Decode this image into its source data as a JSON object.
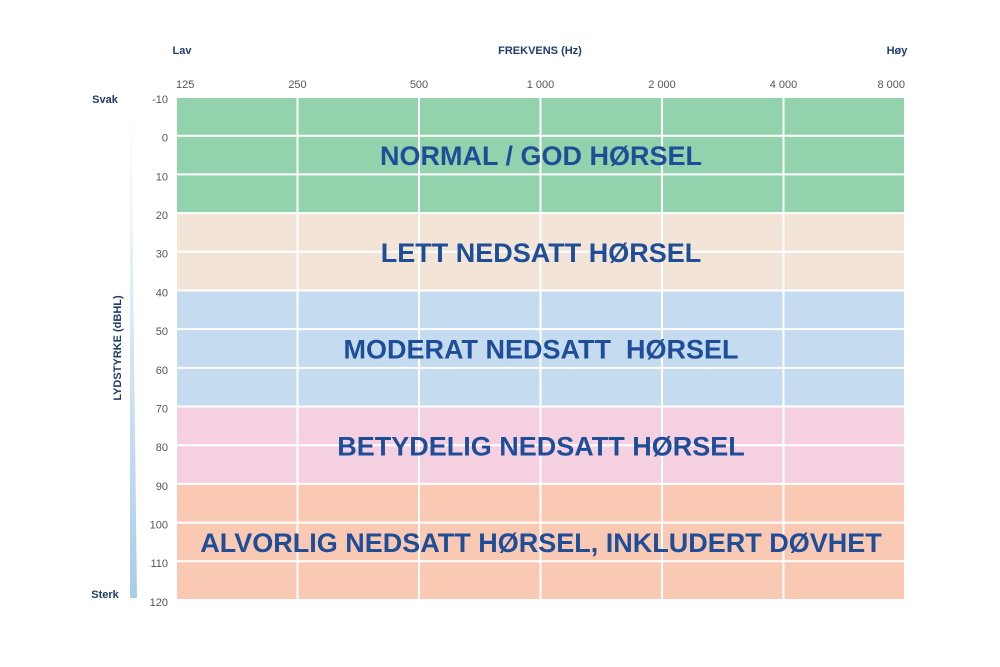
{
  "chart_data": {
    "type": "audiogram",
    "title": "FREKVENS (Hz)",
    "x_low_label": "Lav",
    "x_high_label": "Høy",
    "y_label": "LYDSTYRKE (dBHL)",
    "y_top_label": "Svak",
    "y_bottom_label": "Sterk",
    "xscale": "log",
    "xlim": [
      125,
      8000
    ],
    "xticks": [
      125,
      250,
      500,
      {
        "value": 1000,
        "label": "1 000"
      },
      {
        "value": 2000,
        "label": "2 000"
      },
      {
        "value": 4000,
        "label": "4 000"
      },
      {
        "value": 8000,
        "label": "8 000"
      }
    ],
    "ylim": [
      -10,
      120
    ],
    "yinverted": true,
    "yticks": [
      -10,
      0,
      10,
      20,
      30,
      40,
      50,
      60,
      70,
      80,
      90,
      100,
      110,
      120
    ],
    "grid": true,
    "bands": [
      {
        "label": "NORMAL / GOD HØRSEL",
        "from": -10,
        "to": 20,
        "color": "#92d3ad"
      },
      {
        "label": "LETT NEDSATT HØRSEL",
        "from": 20,
        "to": 40,
        "color": "#f3e4d8"
      },
      {
        "label": "MODERAT NEDSATT  HØRSEL",
        "from": 40,
        "to": 70,
        "color": "#c5dbef"
      },
      {
        "label": "BETYDELIG NEDSATT HØRSEL",
        "from": 70,
        "to": 90,
        "color": "#f5d0e1"
      },
      {
        "label": "ALVORLIG NEDSATT HØRSEL, INKLUDERT DØVHET",
        "from": 90,
        "to": 120,
        "color": "#f9c9b4"
      }
    ]
  }
}
